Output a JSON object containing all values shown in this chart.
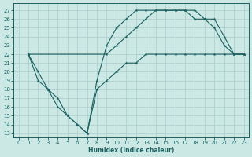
{
  "xlabel": "Humidex (Indice chaleur)",
  "bg_color": "#cce8e4",
  "grid_color": "#aacccc",
  "line_color": "#1a6060",
  "xlim": [
    -0.5,
    23.5
  ],
  "ylim": [
    12.5,
    27.8
  ],
  "xticks": [
    0,
    1,
    2,
    3,
    4,
    5,
    6,
    7,
    8,
    9,
    10,
    11,
    12,
    13,
    14,
    15,
    16,
    17,
    18,
    19,
    20,
    21,
    22,
    23
  ],
  "yticks": [
    13,
    14,
    15,
    16,
    17,
    18,
    19,
    20,
    21,
    22,
    23,
    24,
    25,
    26,
    27
  ],
  "line1_x": [
    1,
    2,
    3,
    4,
    5,
    6,
    7,
    8,
    9,
    10,
    11,
    12,
    13,
    14,
    15,
    16,
    17,
    18,
    19,
    20,
    21,
    22,
    23
  ],
  "line1_y": [
    22,
    20,
    18,
    17,
    15,
    14,
    13,
    19,
    23,
    25,
    26,
    27,
    27,
    27,
    27,
    27,
    27,
    26,
    26,
    25,
    23,
    22,
    22
  ],
  "line2_x": [
    1,
    9,
    10,
    11,
    12,
    13,
    14,
    15,
    16,
    17,
    18,
    19,
    20,
    21,
    22,
    23
  ],
  "line2_y": [
    22,
    22,
    23,
    24,
    25,
    26,
    27,
    27,
    27,
    27,
    27,
    26,
    26,
    24,
    22,
    22
  ],
  "line3_x": [
    1,
    2,
    3,
    4,
    5,
    6,
    7,
    8,
    9,
    10,
    11,
    12,
    13,
    14,
    15,
    16,
    17,
    18,
    19,
    20,
    21,
    22,
    23
  ],
  "line3_y": [
    22,
    19,
    18,
    16,
    15,
    14,
    13,
    18,
    19,
    20,
    21,
    21,
    22,
    22,
    22,
    22,
    22,
    22,
    22,
    22,
    22,
    22,
    22
  ]
}
